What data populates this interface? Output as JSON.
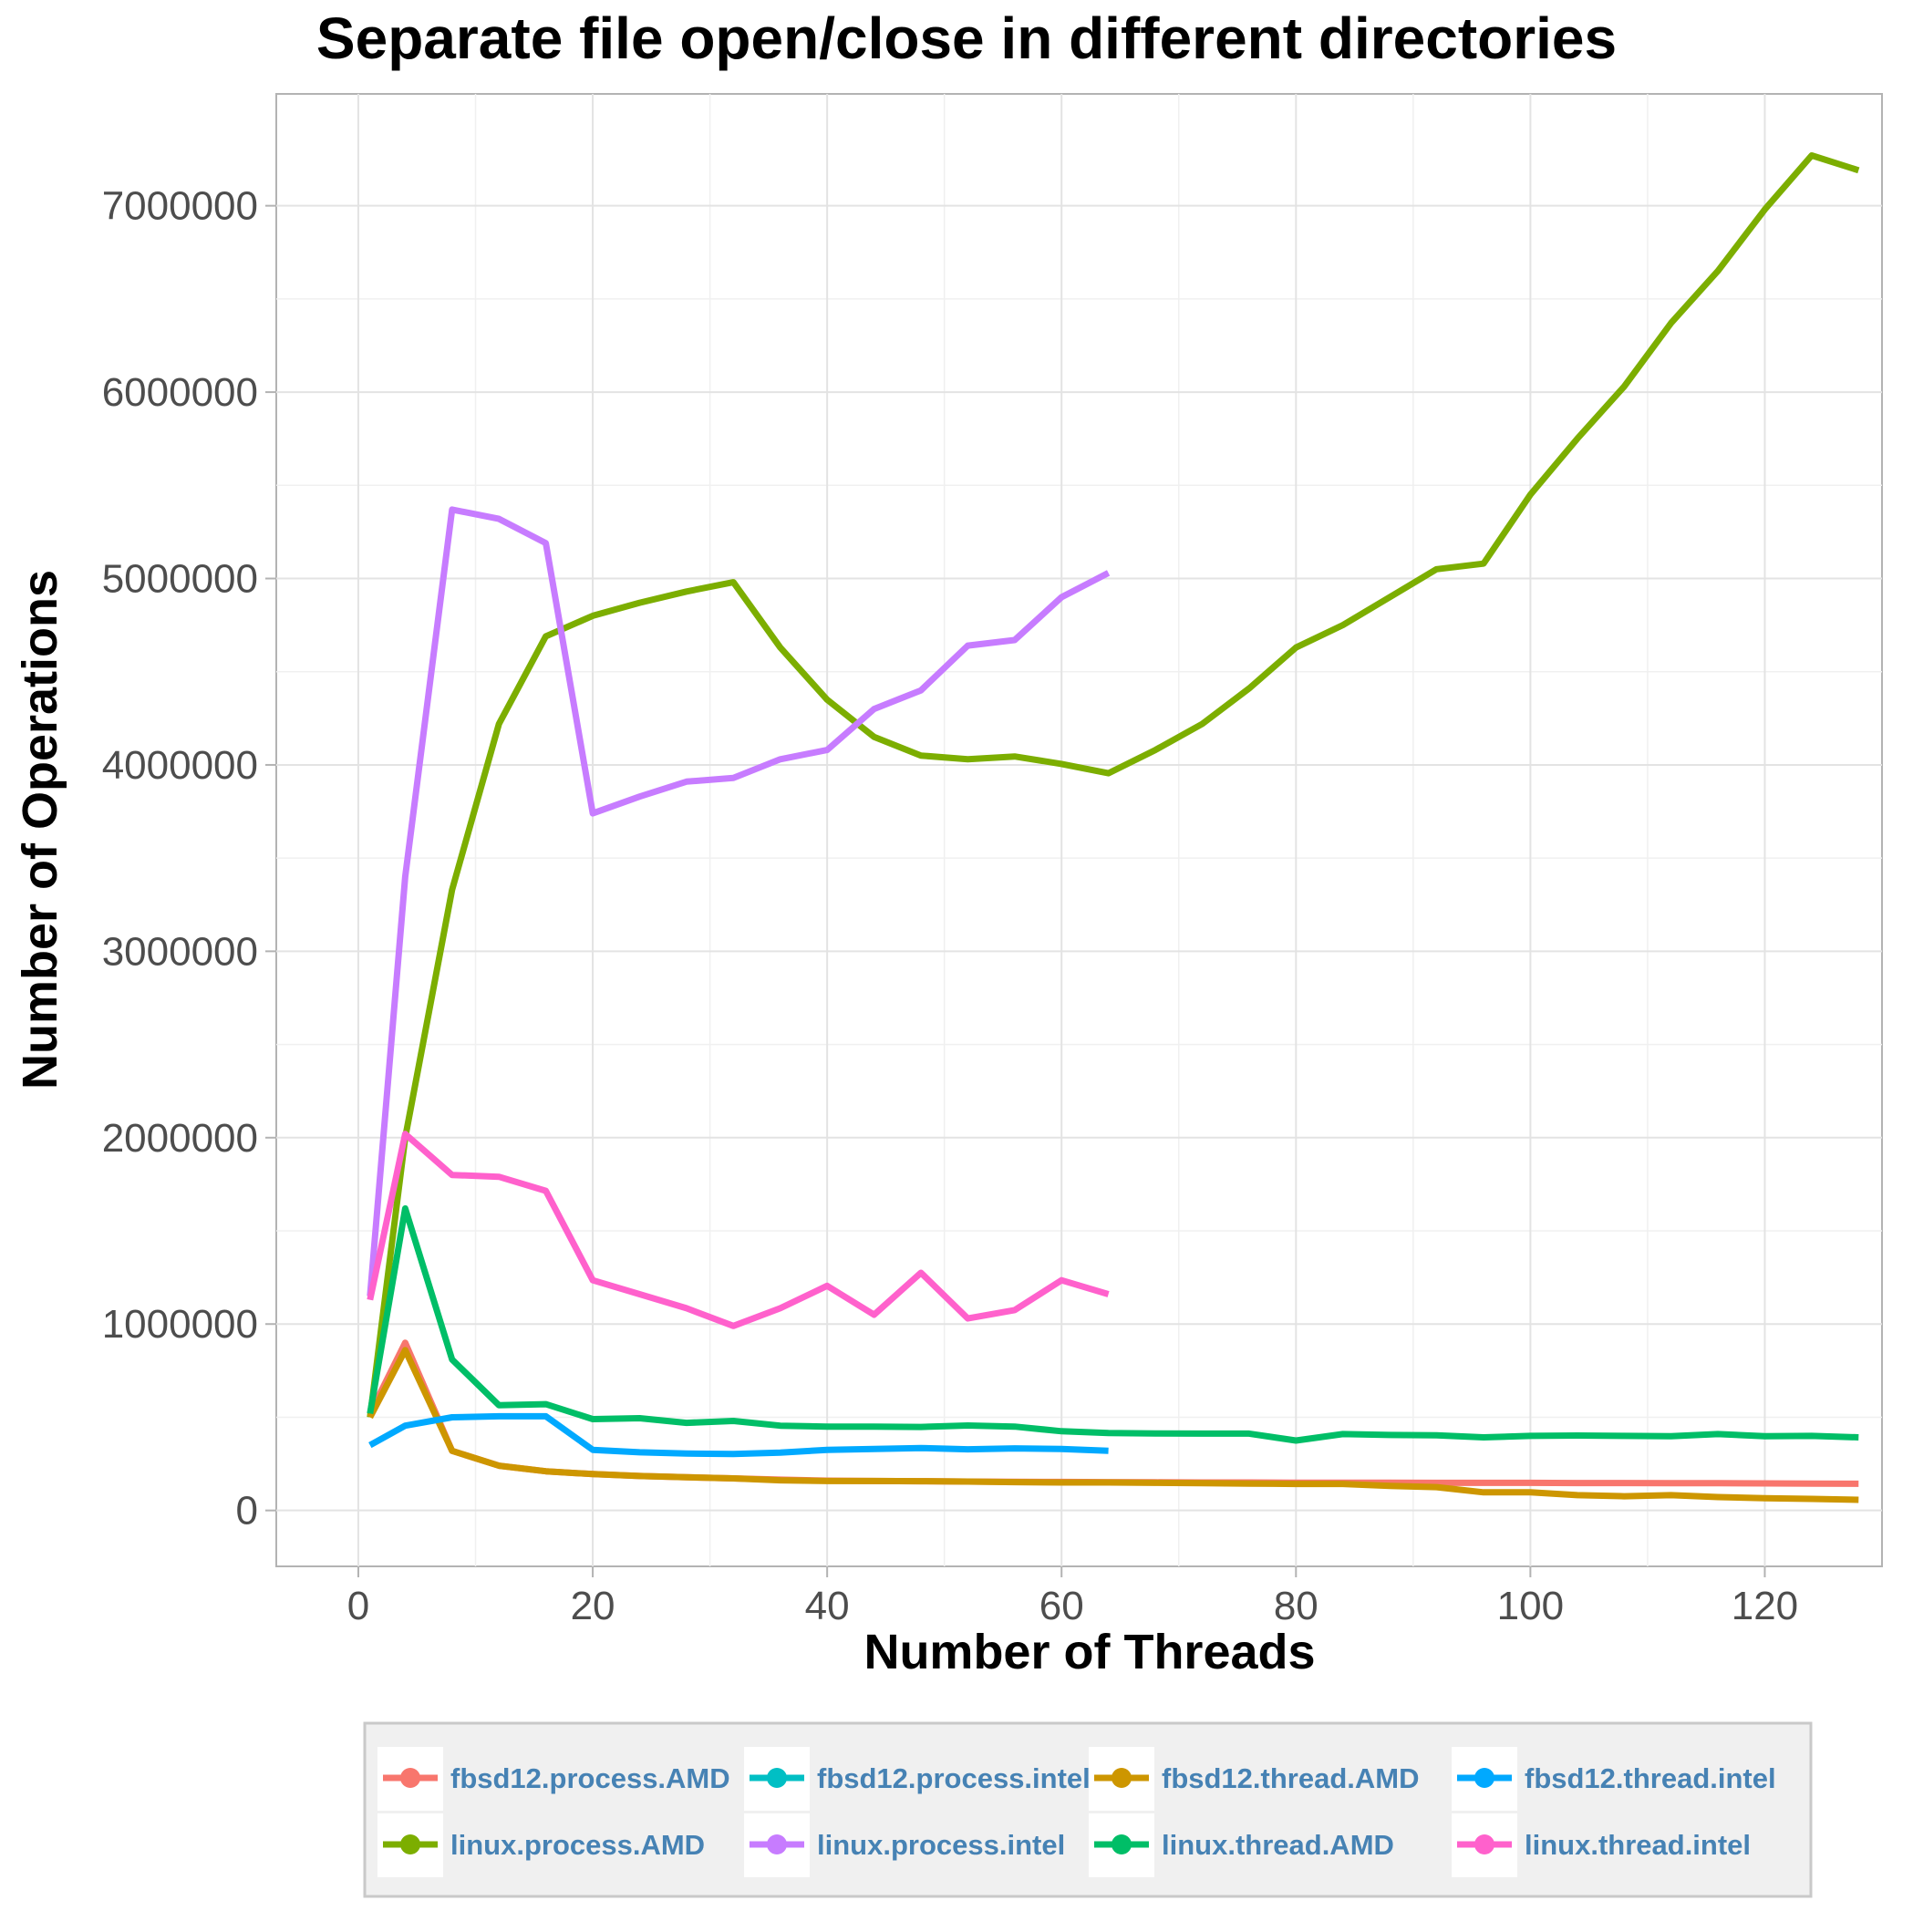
{
  "chart_data": {
    "type": "line",
    "title": "Separate file open/close in different directories",
    "xlabel": "Number of Threads",
    "ylabel": "Number of Operations",
    "xlim": [
      -7,
      130
    ],
    "ylim": [
      -300000,
      7600000
    ],
    "x_ticks": [
      0,
      20,
      40,
      60,
      80,
      100,
      120
    ],
    "y_ticks": [
      0,
      1000000,
      2000000,
      3000000,
      4000000,
      5000000,
      6000000,
      7000000
    ],
    "grid": true,
    "legend_position": "bottom",
    "series": [
      {
        "name": "fbsd12.process.AMD",
        "color": "#F8766D",
        "x": [
          1,
          4,
          8,
          12,
          16,
          20,
          24,
          28,
          32,
          36,
          40,
          44,
          48,
          52,
          56,
          60,
          64,
          68,
          72,
          76,
          80,
          84,
          88,
          92,
          96,
          100,
          104,
          108,
          112,
          116,
          120,
          124,
          128
        ],
        "y": [
          520000,
          900000,
          320000,
          240000,
          210000,
          195000,
          185000,
          178000,
          172000,
          165000,
          160000,
          158000,
          157000,
          155000,
          154000,
          153000,
          152000,
          151000,
          150000,
          150000,
          149000,
          149000,
          149000,
          148000,
          148000,
          148000,
          147000,
          147000,
          146000,
          146000,
          145000,
          144000,
          143000
        ]
      },
      {
        "name": "linux.process.AMD",
        "color": "#7CAE00",
        "x": [
          1,
          4,
          8,
          12,
          16,
          20,
          24,
          28,
          32,
          36,
          40,
          44,
          48,
          52,
          56,
          60,
          64,
          68,
          72,
          76,
          80,
          84,
          88,
          92,
          96,
          100,
          104,
          108,
          112,
          116,
          120,
          124,
          128
        ],
        "y": [
          500000,
          2000000,
          3330000,
          4220000,
          4690000,
          4800000,
          4870000,
          4930000,
          4980000,
          4630000,
          4350000,
          4150000,
          4050000,
          4030000,
          4045000,
          4005000,
          3955000,
          4080000,
          4220000,
          4410000,
          4630000,
          4750000,
          4900000,
          5050000,
          5080000,
          5450000,
          5750000,
          6030000,
          6370000,
          6650000,
          6980000,
          7270000,
          7190000
        ]
      },
      {
        "name": "fbsd12.process.intel",
        "color": "#00BFC4",
        "x": [],
        "y": []
      },
      {
        "name": "linux.process.intel",
        "color": "#C77CFF",
        "x": [
          1,
          4,
          8,
          12,
          16,
          20,
          24,
          28,
          32,
          36,
          40,
          44,
          48,
          52,
          56,
          60,
          64
        ],
        "y": [
          1150000,
          3400000,
          5370000,
          5320000,
          5190000,
          3740000,
          3830000,
          3910000,
          3930000,
          4030000,
          4080000,
          4300000,
          4400000,
          4640000,
          4670000,
          4900000,
          5030000
        ]
      },
      {
        "name": "fbsd12.thread.AMD",
        "color": "#CD9600",
        "x": [
          1,
          4,
          8,
          12,
          16,
          20,
          24,
          28,
          32,
          36,
          40,
          44,
          48,
          52,
          56,
          60,
          64,
          68,
          72,
          76,
          80,
          84,
          88,
          92,
          96,
          100,
          104,
          108,
          112,
          116,
          120,
          124,
          128
        ],
        "y": [
          500000,
          860000,
          320000,
          240000,
          210000,
          195000,
          185000,
          178000,
          172000,
          162000,
          158000,
          158000,
          157000,
          155000,
          152000,
          150000,
          150000,
          148000,
          146000,
          144000,
          142000,
          142000,
          132000,
          125000,
          97000,
          97000,
          82000,
          76000,
          82000,
          72000,
          66000,
          62000,
          57000
        ]
      },
      {
        "name": "linux.thread.AMD",
        "color": "#00BE67",
        "x": [
          1,
          4,
          8,
          12,
          16,
          20,
          24,
          28,
          32,
          36,
          40,
          44,
          48,
          52,
          56,
          60,
          64,
          68,
          72,
          76,
          80,
          84,
          88,
          92,
          96,
          100,
          104,
          108,
          112,
          116,
          120,
          124,
          128
        ],
        "y": [
          520000,
          1620000,
          810000,
          565000,
          570000,
          490000,
          495000,
          470000,
          480000,
          455000,
          450000,
          450000,
          448000,
          456000,
          450000,
          425000,
          415000,
          413000,
          412000,
          412000,
          375000,
          410000,
          405000,
          403000,
          392000,
          400000,
          402000,
          400000,
          398000,
          410000,
          398000,
          400000,
          392000
        ]
      },
      {
        "name": "fbsd12.thread.intel",
        "color": "#00A9FF",
        "x": [
          1,
          4,
          8,
          12,
          16,
          20,
          24,
          28,
          32,
          36,
          40,
          44,
          48,
          52,
          56,
          60,
          64
        ],
        "y": [
          350000,
          455000,
          500000,
          505000,
          505000,
          325000,
          312000,
          305000,
          303000,
          310000,
          325000,
          330000,
          335000,
          328000,
          333000,
          330000,
          320000
        ]
      },
      {
        "name": "linux.thread.intel",
        "color": "#FF61CC",
        "x": [
          1,
          4,
          8,
          12,
          16,
          20,
          24,
          28,
          32,
          36,
          40,
          44,
          48,
          52,
          56,
          60,
          64
        ],
        "y": [
          1130000,
          2020000,
          1800000,
          1790000,
          1715000,
          1235000,
          1160000,
          1085000,
          990000,
          1085000,
          1205000,
          1050000,
          1275000,
          1030000,
          1075000,
          1235000,
          1160000
        ]
      }
    ]
  }
}
